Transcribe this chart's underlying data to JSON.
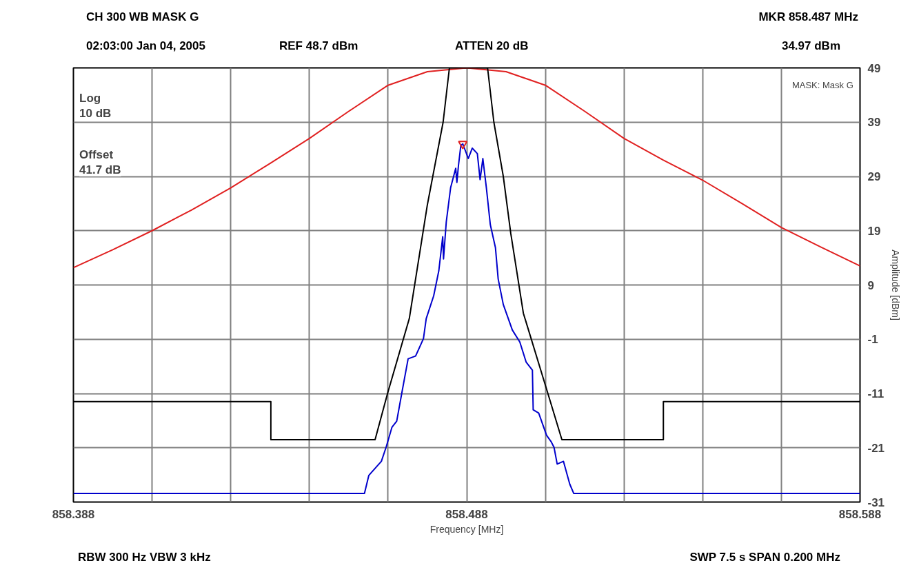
{
  "chart_data": {
    "type": "line",
    "title": "CH 300 WB MASK G",
    "xlabel": "Frequency [MHz]",
    "ylabel": "Amplitude [dBm]",
    "annotations": [
      "02:03:00 Jan 04, 2005",
      "REF 48.7 dBm",
      "ATTEN 20 dB",
      "MKR 858.487 MHz",
      "34.97 dBm",
      "Log",
      "10 dB",
      "Offset",
      "41.7 dB",
      "MASK: Mask G",
      "RBW 300 Hz  VBW 3 kHz",
      "SWP 7.5 s  SPAN 0.200 MHz"
    ],
    "xlim": [
      858.388,
      858.588
    ],
    "ylim": [
      -31,
      49
    ],
    "xticks": [
      858.388,
      {
        "value": 858.408,
        "label": null
      },
      {
        "value": 858.428,
        "label": null
      },
      {
        "value": 858.448,
        "label": null
      },
      {
        "value": 858.468,
        "label": null
      },
      858.488,
      {
        "value": 858.508,
        "label": null
      },
      {
        "value": 858.528,
        "label": null
      },
      {
        "value": 858.548,
        "label": null
      },
      {
        "value": 858.568,
        "label": null
      },
      858.588
    ],
    "yticks": [
      49,
      39,
      29,
      19,
      9,
      -1,
      -11,
      -21,
      -31
    ],
    "grid": true,
    "line_style": "solid",
    "series": [
      {
        "color": "#e02020",
        "x": [
          858.388,
          858.398,
          858.408,
          858.418,
          858.428,
          858.438,
          858.448,
          858.458,
          858.468,
          858.478,
          858.488,
          858.498,
          858.508,
          858.518,
          858.528,
          858.538,
          858.548,
          858.558,
          858.568,
          858.578,
          858.588
        ],
        "values": [
          12.2,
          15.5,
          19.0,
          22.8,
          26.9,
          31.4,
          36.0,
          41.0,
          45.8,
          48.3,
          49,
          48.3,
          45.8,
          41.0,
          36.0,
          32.0,
          28.3,
          24.0,
          19.6,
          16.0,
          12.5
        ]
      },
      {
        "color": "#000000",
        "x": [
          858.388,
          858.4382,
          858.4382,
          858.4647,
          858.4679,
          858.4734,
          858.478,
          858.482,
          858.4836,
          858.4933,
          858.4949,
          858.4973,
          858.4992,
          858.5024,
          858.5086,
          858.5122,
          858.538,
          858.538,
          858.588
        ],
        "values": [
          -12.5,
          -12.5,
          -19.5,
          -19.5,
          -10.9,
          2.8,
          23.8,
          39.0,
          49,
          49,
          39.0,
          29.0,
          18.5,
          3.8,
          -10.9,
          -19.5,
          -19.5,
          -12.5,
          -12.5
        ]
      },
      {
        "color": "#0000cc",
        "x": [
          858.388,
          858.462,
          858.4631,
          858.4663,
          858.4675,
          858.469,
          858.4702,
          858.4715,
          858.4731,
          858.475,
          858.477,
          858.4777,
          858.4796,
          858.4809,
          858.4819,
          858.4821,
          858.4828,
          858.4839,
          858.4852,
          858.4855,
          858.4859,
          858.4865,
          858.487,
          858.4884,
          858.4894,
          858.4907,
          858.4914,
          858.4921,
          858.493,
          858.494,
          858.4953,
          858.496,
          858.4973,
          858.4996,
          858.5015,
          858.5031,
          858.5047,
          858.5049,
          858.5063,
          858.5083,
          858.5094,
          858.5102,
          858.511,
          858.5126,
          858.5142,
          858.5152,
          858.588
        ],
        "values": [
          -29.4,
          -29.4,
          -26.1,
          -23.5,
          -20.9,
          -17.2,
          -16.1,
          -10.9,
          -4.6,
          -4.1,
          -0.9,
          2.8,
          7.0,
          11.6,
          17.9,
          13.8,
          20.6,
          26.9,
          30.5,
          27.9,
          31.0,
          34.7,
          35.0,
          32.3,
          34.2,
          33.2,
          28.4,
          32.3,
          26.9,
          20.1,
          15.9,
          10.1,
          5.4,
          0.7,
          -1.5,
          -5.2,
          -6.7,
          -14.0,
          -14.6,
          -18.7,
          -19.8,
          -20.9,
          -24.0,
          -23.5,
          -27.7,
          -29.4,
          -29.4
        ]
      },
      {
        "type": "scatter",
        "marker": "triangle",
        "color": "#e02020",
        "x": [
          858.487
        ],
        "values": [
          35.0
        ]
      }
    ]
  }
}
